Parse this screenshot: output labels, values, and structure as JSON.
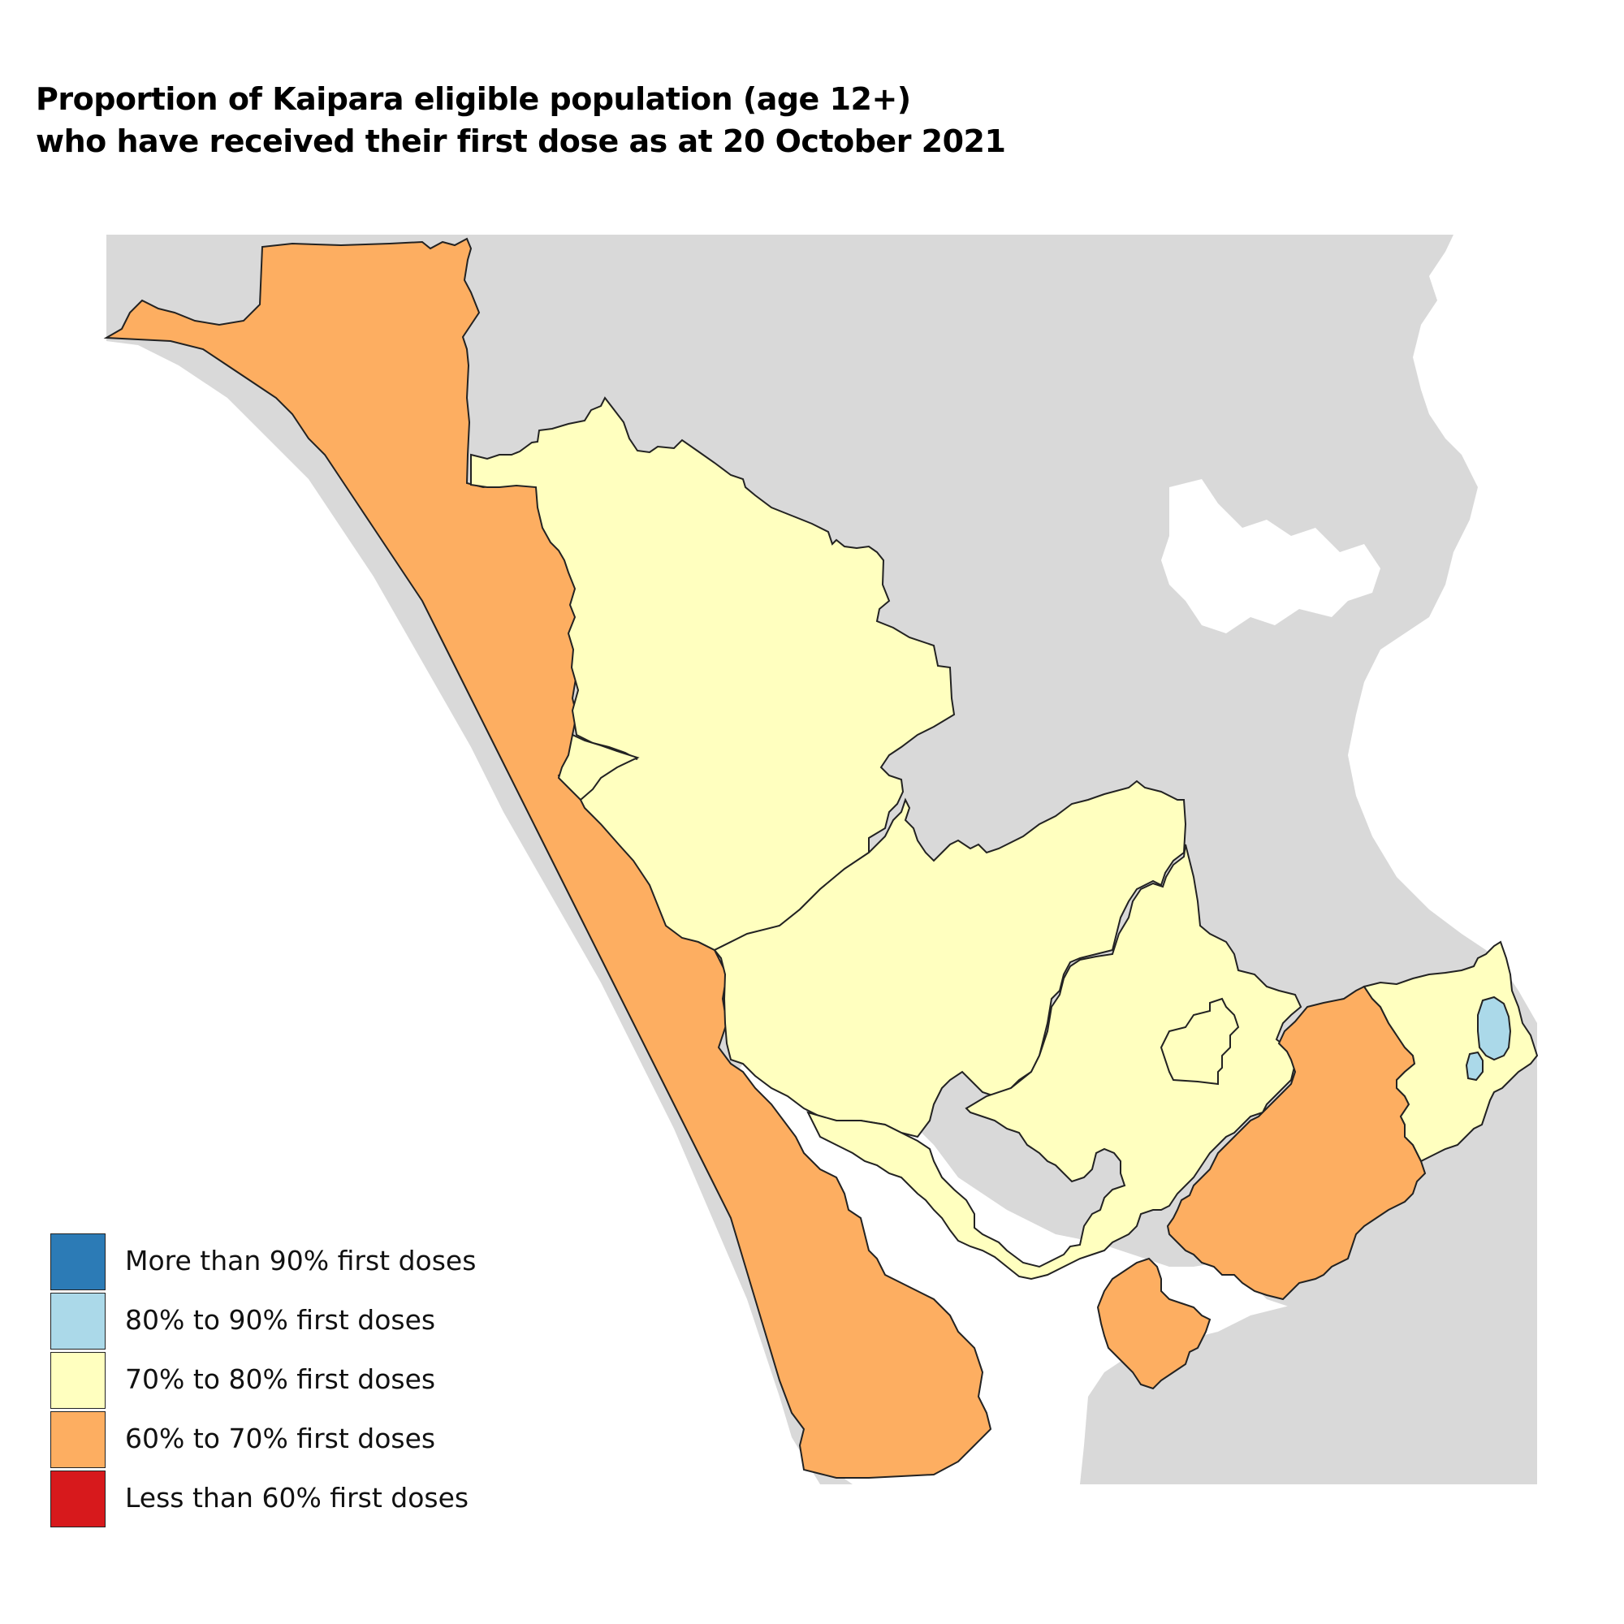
{
  "title": {
    "line1": "Proportion of Kaipara eligible population (age 12+)",
    "line2": "who have received their first dose as at 20 October 2021"
  },
  "colors": {
    "background_land": "#d9d9d9",
    "water": "#ffffff",
    "border": "#222222",
    "more_than_90": "#2c7bb6",
    "80_to_90": "#abd9e9",
    "70_to_80": "#ffffbf",
    "60_to_70": "#fdae61",
    "less_than_60": "#d7191c"
  },
  "legend": {
    "items": [
      {
        "label": "More than 90% first doses",
        "color": "#2c7bb6"
      },
      {
        "label": "80% to 90% first doses",
        "color": "#abd9e9"
      },
      {
        "label": "70% to 80% first doses",
        "color": "#ffffbf"
      },
      {
        "label": "60% to 70% first doses",
        "color": "#fdae61"
      },
      {
        "label": "Less than 60% first doses",
        "color": "#d7191c"
      }
    ]
  },
  "regions": [
    {
      "name": "west-coast-strip",
      "category": "60% to 70% first doses"
    },
    {
      "name": "northern-inland",
      "category": "70% to 80% first doses"
    },
    {
      "name": "central-inland",
      "category": "70% to 80% first doses"
    },
    {
      "name": "small-west-pocket",
      "category": "70% to 80% first doses"
    },
    {
      "name": "south-harbour",
      "category": "70% to 80% first doses"
    },
    {
      "name": "inner-district",
      "category": "70% to 80% first doses"
    },
    {
      "name": "southeast-region",
      "category": "60% to 70% first doses"
    },
    {
      "name": "south-peninsula",
      "category": "60% to 70% first doses"
    },
    {
      "name": "east-coast-region",
      "category": "70% to 80% first doses"
    },
    {
      "name": "east-coast-town",
      "category": "80% to 90% first doses"
    }
  ]
}
